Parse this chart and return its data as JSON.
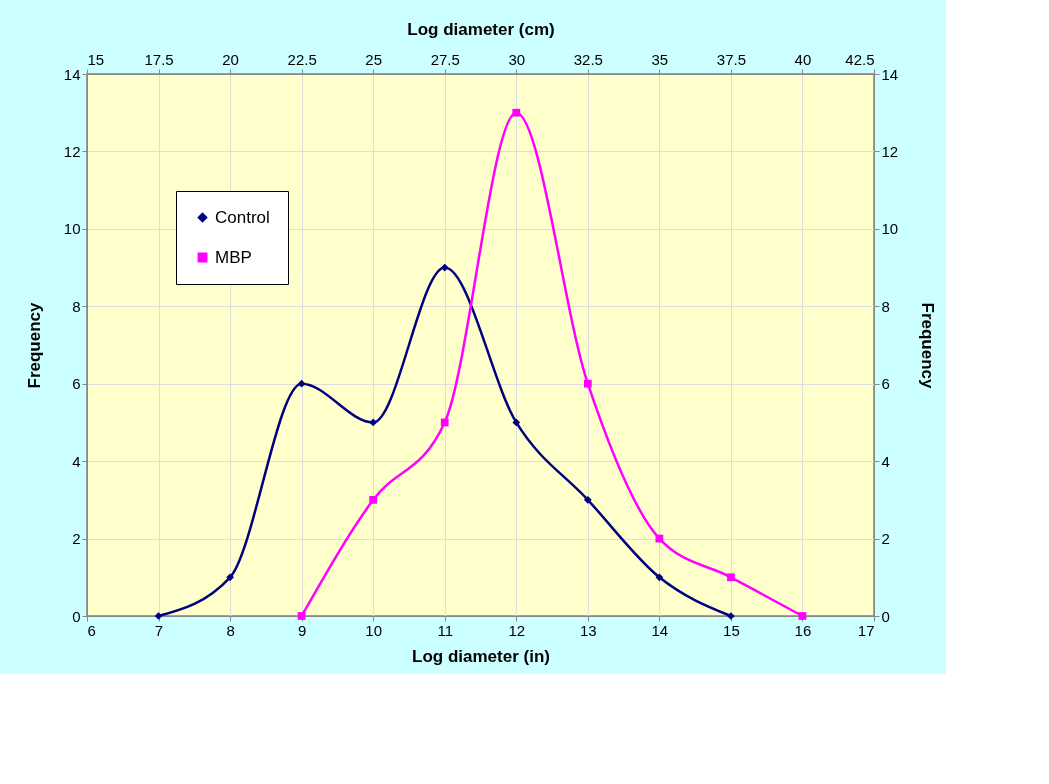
{
  "chart_data": {
    "type": "line",
    "xlabel": "Log diameter (in)",
    "ylabel": "Frequency",
    "x2label": "Log diameter (cm)",
    "y2label": "Frequency",
    "xlim": [
      6,
      17
    ],
    "xticks": [
      6,
      7,
      8,
      9,
      10,
      11,
      12,
      13,
      14,
      15,
      16,
      17
    ],
    "x2lim": [
      15,
      42.5
    ],
    "x2ticks": [
      15,
      17.5,
      20,
      22.5,
      25,
      27.5,
      30,
      32.5,
      35,
      37.5,
      40,
      42.5
    ],
    "ylim": [
      0,
      14
    ],
    "yticks": [
      0,
      2,
      4,
      6,
      8,
      10,
      12,
      14
    ],
    "y2lim": [
      0,
      14
    ],
    "y2ticks": [
      0,
      2,
      4,
      6,
      8,
      10,
      12,
      14
    ],
    "grid": true,
    "legend": "top left",
    "series": [
      {
        "name": "Control",
        "color": "#000080",
        "marker": "diamond",
        "x": [
          7,
          8,
          9,
          10,
          11,
          12,
          13,
          14,
          15
        ],
        "values": [
          0,
          1,
          6,
          5,
          9,
          5,
          3,
          1,
          0
        ]
      },
      {
        "name": "MBP",
        "color": "#ff00ff",
        "marker": "square",
        "x": [
          9,
          10,
          11,
          12,
          13,
          14,
          15,
          16
        ],
        "values": [
          0,
          3,
          5,
          13,
          6,
          2,
          1,
          0
        ]
      }
    ]
  }
}
